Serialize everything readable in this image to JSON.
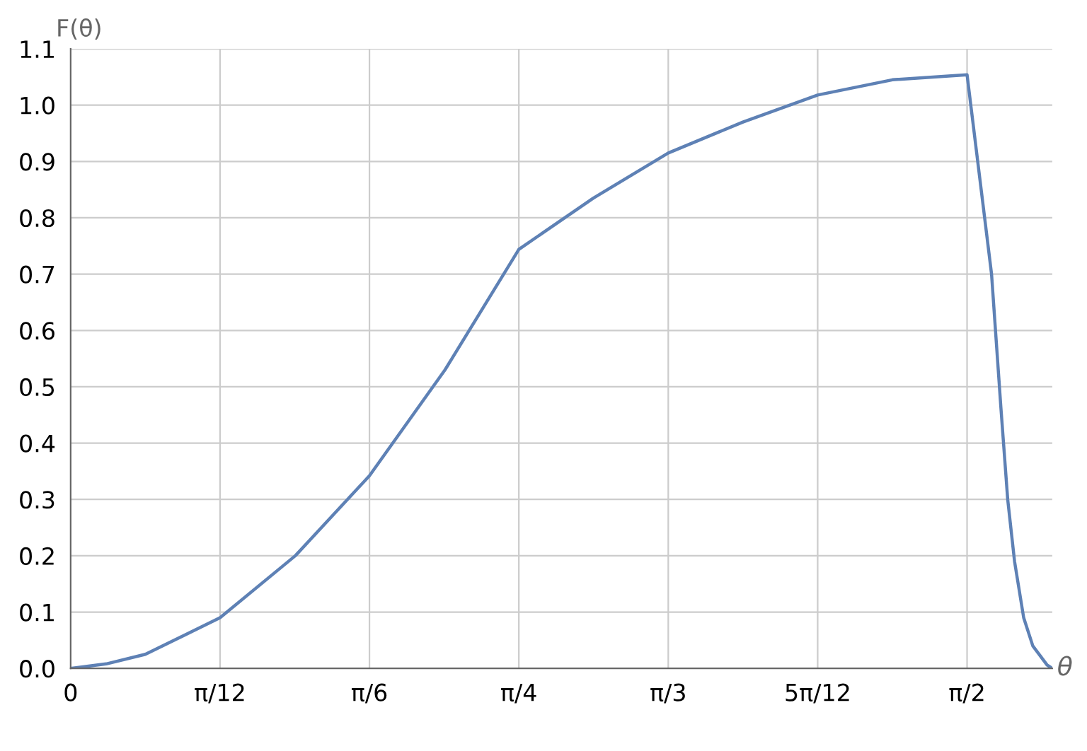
{
  "chart_data": {
    "type": "line",
    "xlabel": "θ",
    "ylabel": "F(θ)",
    "series": [
      {
        "color": "#5e81b5",
        "x": [
          0,
          0.0623,
          0.1309,
          0.2618,
          0.3937,
          0.5236,
          0.656,
          0.7854,
          0.916,
          1.0472,
          1.178,
          1.309,
          1.44,
          1.5708,
          1.6137,
          1.63,
          1.642,
          1.654,
          1.67,
          1.686,
          1.711,
          1.72
        ],
        "values": [
          0,
          0.008,
          0.025,
          0.09,
          0.2,
          0.342,
          0.53,
          0.744,
          0.835,
          0.915,
          0.97,
          1.018,
          1.045,
          1.054,
          0.7,
          0.464,
          0.3,
          0.19,
          0.09,
          0.04,
          0.006,
          0
        ]
      }
    ],
    "xlim": [
      0,
      1.72
    ],
    "ylim": [
      0,
      1.1
    ],
    "xticks": [
      {
        "value": 0,
        "label": "0"
      },
      {
        "value": 0.2618,
        "label": "π/12"
      },
      {
        "value": 0.5236,
        "label": "π/6"
      },
      {
        "value": 0.7854,
        "label": "π/4"
      },
      {
        "value": 1.0472,
        "label": "π/3"
      },
      {
        "value": 1.309,
        "label": "5π/12"
      },
      {
        "value": 1.5708,
        "label": "π/2"
      }
    ],
    "yticks": [
      {
        "value": 0,
        "label": "0.0"
      },
      0.1,
      0.2,
      0.3,
      0.4,
      0.5,
      0.6,
      0.7,
      0.8,
      0.9,
      {
        "value": 1,
        "label": "1.0"
      },
      1.1
    ],
    "grid": true,
    "line_style": "solid",
    "marker": "none"
  }
}
